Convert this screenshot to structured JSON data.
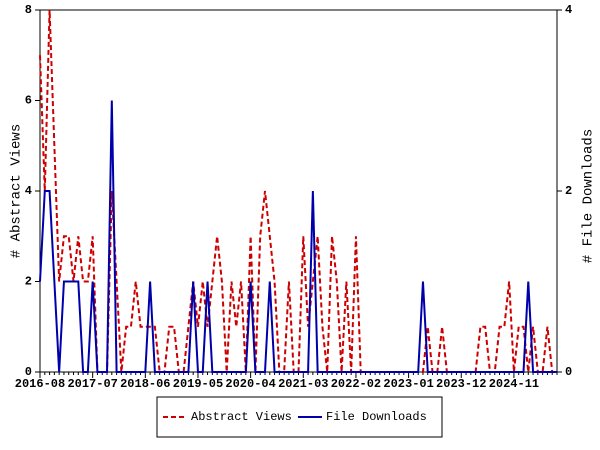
{
  "chart_data": {
    "type": "line",
    "categories": [
      "2016-08",
      null,
      null,
      null,
      null,
      null,
      null,
      null,
      null,
      null,
      null,
      "2017-07",
      null,
      null,
      null,
      null,
      null,
      null,
      null,
      null,
      null,
      null,
      "2018-06",
      null,
      null,
      null,
      null,
      null,
      null,
      null,
      null,
      null,
      null,
      "2019-05",
      null,
      null,
      null,
      null,
      null,
      null,
      null,
      null,
      null,
      null,
      "2020-04",
      null,
      null,
      null,
      null,
      null,
      null,
      null,
      null,
      null,
      null,
      "2021-03",
      null,
      null,
      null,
      null,
      null,
      null,
      null,
      null,
      null,
      null,
      "2022-02",
      null,
      null,
      null,
      null,
      null,
      null,
      null,
      null,
      null,
      null,
      "2023-01",
      null,
      null,
      null,
      null,
      null,
      null,
      null,
      null,
      null,
      null,
      "2023-12",
      null,
      null,
      null,
      null,
      null,
      null,
      null,
      null,
      null,
      null,
      "2024-11",
      null,
      null,
      null,
      null,
      null,
      null,
      null,
      null,
      null
    ],
    "ylabel": "# Abstract Views",
    "y2label": "# File Downloads",
    "ylim": [
      0,
      8
    ],
    "yticks": [
      0,
      2,
      4,
      6,
      8
    ],
    "y2lim": [
      0,
      4
    ],
    "y2ticks": [
      0,
      2,
      4
    ],
    "series": [
      {
        "name": "Abstract Views",
        "color": "#cc0000",
        "dashed": true,
        "values": [
          7,
          4,
          8,
          5,
          2,
          3,
          3,
          2,
          3,
          2,
          2,
          3,
          0,
          0,
          0,
          4,
          2,
          0,
          1,
          1,
          2,
          1,
          1,
          1,
          1,
          0,
          0,
          1,
          1,
          0,
          0,
          1,
          2,
          1,
          2,
          1,
          2,
          3,
          2,
          0,
          2,
          1,
          2,
          0,
          3,
          0,
          3,
          4,
          3,
          2,
          0,
          0,
          2,
          0,
          0,
          3,
          1,
          2,
          3,
          1,
          0,
          3,
          2,
          0,
          2,
          0,
          3,
          0,
          0,
          0,
          0,
          0,
          0,
          0,
          0,
          0,
          0,
          0,
          0,
          0,
          0,
          1,
          0,
          0,
          1,
          0,
          0,
          0,
          0,
          0,
          0,
          0,
          1,
          1,
          0,
          0,
          1,
          1,
          2,
          0,
          1,
          1,
          0,
          1,
          0,
          0,
          1,
          0,
          0
        ]
      },
      {
        "name": "File Downloads",
        "color": "#0000aa",
        "axis": "y2",
        "values": [
          1,
          2,
          2,
          1,
          0,
          1,
          1,
          1,
          1,
          0,
          0,
          1,
          0,
          0,
          0,
          3,
          0,
          0,
          0,
          0,
          0,
          0,
          0,
          1,
          0,
          0,
          0,
          0,
          0,
          0,
          0,
          0,
          1,
          0,
          0,
          1,
          0,
          0,
          0,
          0,
          0,
          0,
          0,
          0,
          1,
          0,
          0,
          0,
          1,
          0,
          0,
          0,
          0,
          0,
          0,
          0,
          0,
          2,
          0,
          0,
          0,
          0,
          0,
          0,
          0,
          0,
          0,
          0,
          0,
          0,
          0,
          0,
          0,
          0,
          0,
          0,
          0,
          0,
          0,
          0,
          1,
          0,
          0,
          0,
          0,
          0,
          0,
          0,
          0,
          0,
          0,
          0,
          0,
          0,
          0,
          0,
          0,
          0,
          0,
          0,
          0,
          0,
          1,
          0,
          0,
          0,
          0,
          0,
          0
        ]
      }
    ]
  }
}
